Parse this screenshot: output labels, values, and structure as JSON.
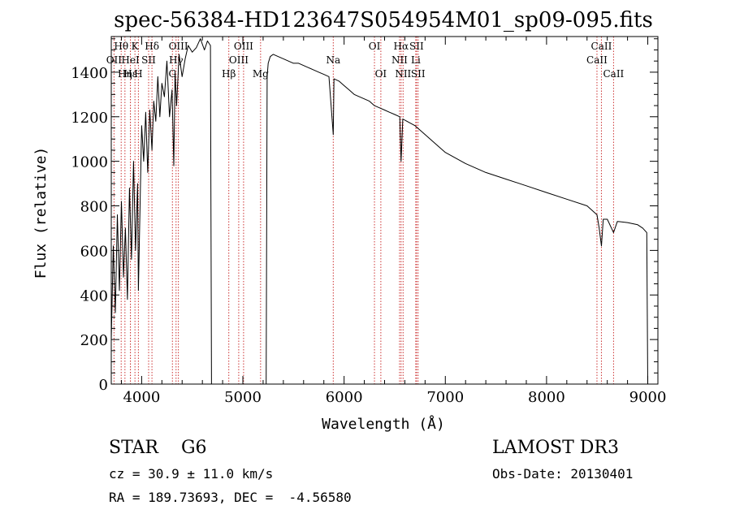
{
  "chart_data": {
    "type": "line",
    "title": "spec-56384-HD123647S054954M01_sp09-095.fits",
    "xlabel": "Wavelength (Å)",
    "ylabel": "Flux (relative)",
    "xlim": [
      3700,
      9100
    ],
    "ylim": [
      0,
      1560
    ],
    "xticks": [
      4000,
      5000,
      6000,
      7000,
      8000,
      9000
    ],
    "yticks": [
      0,
      200,
      400,
      600,
      800,
      1000,
      1200,
      1400
    ],
    "series": [
      {
        "name": "flux",
        "x": [
          3700,
          3720,
          3740,
          3760,
          3780,
          3800,
          3820,
          3840,
          3860,
          3880,
          3900,
          3920,
          3940,
          3960,
          3968,
          3980,
          4000,
          4020,
          4040,
          4060,
          4080,
          4102,
          4120,
          4140,
          4160,
          4180,
          4200,
          4225,
          4250,
          4275,
          4300,
          4318,
          4330,
          4345,
          4370,
          4400,
          4430,
          4460,
          4500,
          4540,
          4580,
          4620,
          4650,
          4680,
          4690,
          4700,
          4720,
          4750,
          4800,
          4861,
          4900,
          4950,
          5000,
          5050,
          5100,
          5150,
          5183,
          5200,
          5230,
          5240,
          5250,
          5270,
          5300,
          5350,
          5400,
          5450,
          5500,
          5550,
          5600,
          5650,
          5700,
          5750,
          5800,
          5850,
          5893,
          5900,
          5950,
          6000,
          6050,
          6100,
          6150,
          6200,
          6250,
          6300,
          6350,
          6400,
          6450,
          6500,
          6550,
          6563,
          6580,
          6620,
          6700,
          6800,
          6900,
          7000,
          7200,
          7400,
          7600,
          7800,
          8000,
          8200,
          8400,
          8498,
          8520,
          8542,
          8560,
          8600,
          8662,
          8700,
          8800,
          8900,
          8950,
          8990,
          9000
        ],
        "values": [
          200,
          620,
          320,
          760,
          420,
          820,
          480,
          700,
          380,
          880,
          560,
          1000,
          600,
          900,
          420,
          700,
          1160,
          1000,
          1220,
          950,
          1230,
          1050,
          1270,
          1180,
          1380,
          1200,
          1350,
          1290,
          1450,
          1200,
          1320,
          980,
          1400,
          1250,
          1480,
          1380,
          1460,
          1520,
          1490,
          1510,
          1550,
          1500,
          1540,
          1520,
          0,
          0,
          0,
          0,
          0,
          0,
          0,
          0,
          0,
          0,
          0,
          0,
          0,
          0,
          0,
          1380,
          1440,
          1470,
          1480,
          1470,
          1460,
          1450,
          1440,
          1440,
          1430,
          1420,
          1410,
          1400,
          1390,
          1380,
          1120,
          1370,
          1360,
          1340,
          1320,
          1300,
          1290,
          1280,
          1270,
          1250,
          1240,
          1230,
          1220,
          1210,
          1200,
          1000,
          1190,
          1180,
          1160,
          1120,
          1080,
          1040,
          990,
          950,
          920,
          890,
          860,
          830,
          800,
          760,
          700,
          620,
          740,
          740,
          680,
          730,
          725,
          715,
          700,
          680,
          0
        ]
      }
    ],
    "lines": [
      {
        "label": "Hθ",
        "x": 3798,
        "row": 1
      },
      {
        "label": "OII",
        "x": 3727,
        "row": 2
      },
      {
        "label": "Hη",
        "x": 3835,
        "row": 3
      },
      {
        "label": "Hε",
        "x": 3889,
        "row": 3
      },
      {
        "label": "K",
        "x": 3934,
        "row": 1
      },
      {
        "label": "HeI",
        "x": 3889,
        "row": 2
      },
      {
        "label": "SII",
        "x": 4069,
        "row": 2
      },
      {
        "label": "H",
        "x": 3968,
        "row": 3
      },
      {
        "label": "Hδ",
        "x": 4102,
        "row": 1
      },
      {
        "label": "OIII",
        "x": 4363,
        "row": 1
      },
      {
        "label": "Hγ",
        "x": 4340,
        "row": 2
      },
      {
        "label": "G",
        "x": 4304,
        "row": 3
      },
      {
        "label": "OIII",
        "x": 5007,
        "row": 1
      },
      {
        "label": "OIII",
        "x": 4959,
        "row": 2
      },
      {
        "label": "Hβ",
        "x": 4861,
        "row": 3
      },
      {
        "label": "Mg",
        "x": 5175,
        "row": 3
      },
      {
        "label": "Na",
        "x": 5893,
        "row": 2
      },
      {
        "label": "OI",
        "x": 6300,
        "row": 1
      },
      {
        "label": "OI",
        "x": 6363,
        "row": 3
      },
      {
        "label": "Hα",
        "x": 6563,
        "row": 1
      },
      {
        "label": "SII",
        "x": 6716,
        "row": 1
      },
      {
        "label": "NII",
        "x": 6548,
        "row": 2
      },
      {
        "label": "Li",
        "x": 6708,
        "row": 2
      },
      {
        "label": "NII",
        "x": 6583,
        "row": 3
      },
      {
        "label": "SII",
        "x": 6731,
        "row": 3
      },
      {
        "label": "CaII",
        "x": 8542,
        "row": 1
      },
      {
        "label": "CaII",
        "x": 8498,
        "row": 2
      },
      {
        "label": "CaII",
        "x": 8662,
        "row": 3
      }
    ]
  },
  "footer": {
    "object": "STAR    G6",
    "survey": "LAMOST DR3",
    "redshift": "cz = 30.9 ± 11.0 km/s",
    "obs_date": "Obs-Date: 20130401",
    "coords": "RA = 189.73693, DEC =  -4.56580"
  },
  "colors": {
    "spectrum": "#000000",
    "line_markers": "#cc3333",
    "axes": "#000000"
  }
}
